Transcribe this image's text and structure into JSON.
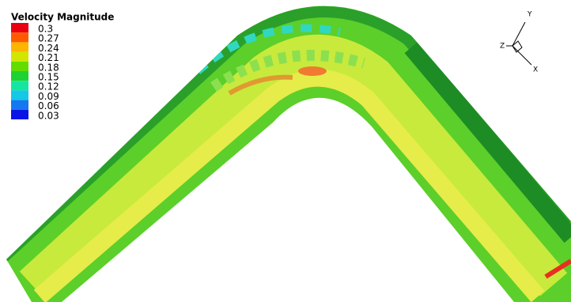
{
  "legend": {
    "title": "Velocity Magnitude",
    "levels": [
      {
        "label": "0.3",
        "color": "#e80010"
      },
      {
        "label": "0.27",
        "color": "#ff5a00"
      },
      {
        "label": "0.24",
        "color": "#ffb400"
      },
      {
        "label": "0.21",
        "color": "#d2e600"
      },
      {
        "label": "0.18",
        "color": "#64dc00"
      },
      {
        "label": "0.15",
        "color": "#1ed232"
      },
      {
        "label": "0.12",
        "color": "#14e6a0"
      },
      {
        "label": "0.09",
        "color": "#14c8e6"
      },
      {
        "label": "0.06",
        "color": "#1478f0"
      },
      {
        "label": "0.03",
        "color": "#0a14e6"
      }
    ]
  },
  "triad": {
    "y": "Y",
    "x": "X",
    "z": "Z"
  }
}
